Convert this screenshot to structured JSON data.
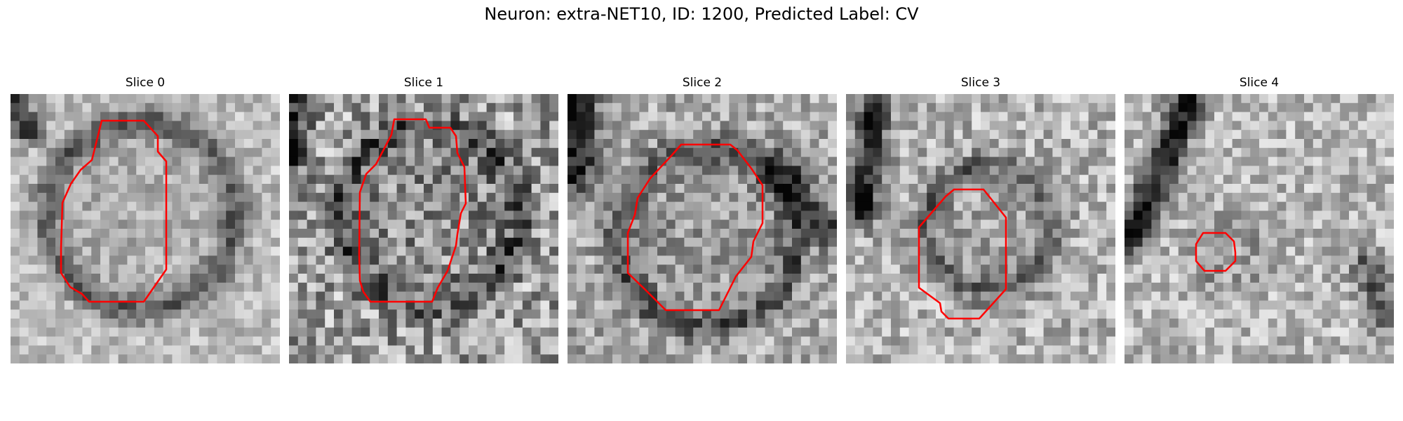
{
  "figure": {
    "title": "Neuron: extra-NET10, ID: 1200, Predicted Label: CV"
  },
  "slices": [
    {
      "label": "Slice 0"
    },
    {
      "label": "Slice 1"
    },
    {
      "label": "Slice 2"
    },
    {
      "label": "Slice 3"
    },
    {
      "label": "Slice 4"
    }
  ],
  "colors": {
    "contour": "#ff0000",
    "background": "#ffffff"
  }
}
